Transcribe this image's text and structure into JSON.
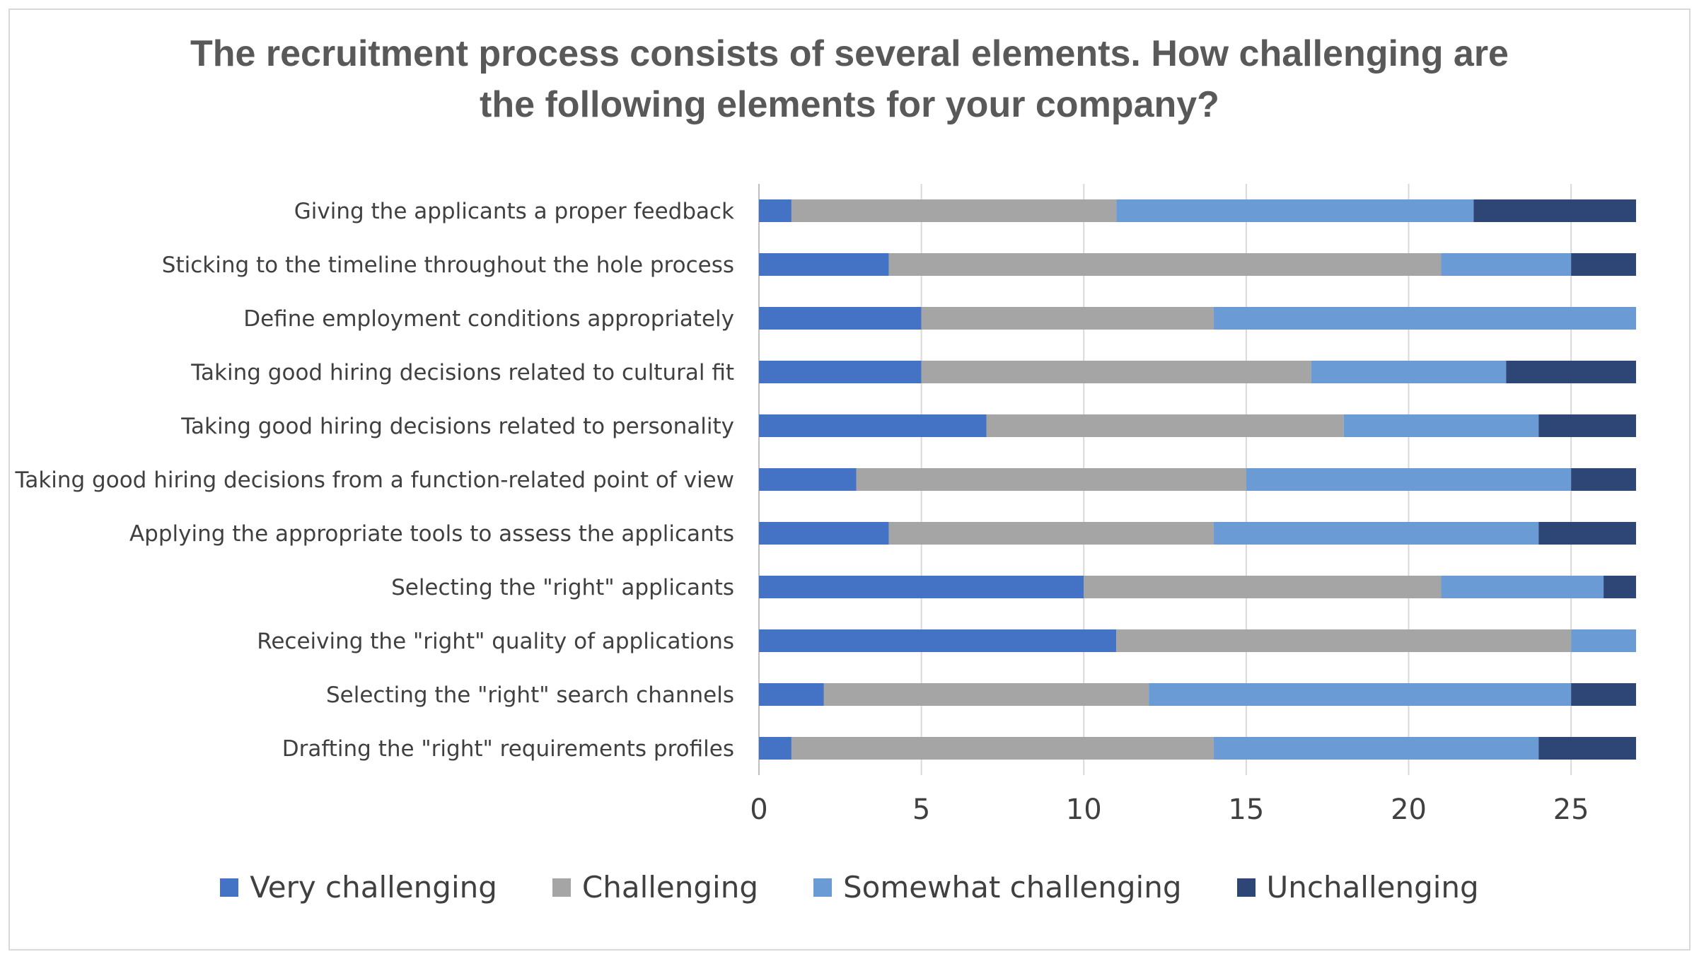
{
  "chart_data": {
    "type": "bar",
    "orientation": "horizontal",
    "stacked": true,
    "title_lines": [
      "The recruitment process consists of several elements. How challenging are",
      "the following elements for your company?"
    ],
    "categories": [
      "Giving the applicants a proper feedback",
      "Sticking to the timeline throughout the hole process",
      "Define employment conditions appropriately",
      "Taking good hiring decisions related to cultural fit",
      "Taking good hiring decisions related to personality",
      "Taking good hiring decisions from a function-related point of view",
      "Applying the appropriate tools to assess the applicants",
      "Selecting the \"right\" applicants",
      "Receiving the \"right\" quality of applications",
      "Selecting the \"right\" search channels",
      "Drafting the \"right\" requirements profiles"
    ],
    "series": [
      {
        "name": "Very challenging",
        "color": "#4472c4",
        "values": [
          1,
          4,
          5,
          5,
          7,
          3,
          4,
          10,
          11,
          2,
          1
        ]
      },
      {
        "name": "Challenging",
        "color": "#a5a5a5",
        "values": [
          10,
          17,
          9,
          12,
          11,
          12,
          10,
          11,
          14,
          10,
          13
        ]
      },
      {
        "name": "Somewhat challenging",
        "color": "#6a9bd4",
        "values": [
          11,
          4,
          13,
          6,
          6,
          10,
          10,
          5,
          2,
          13,
          10
        ]
      },
      {
        "name": "Unchallenging",
        "color": "#2e4676",
        "values": [
          5,
          2,
          0,
          4,
          3,
          2,
          3,
          1,
          0,
          2,
          3
        ]
      }
    ],
    "xlim": [
      0,
      27
    ],
    "xticks": [
      "0",
      "5",
      "10",
      "15",
      "20",
      "25"
    ],
    "grid": true,
    "legend_position": "bottom"
  }
}
